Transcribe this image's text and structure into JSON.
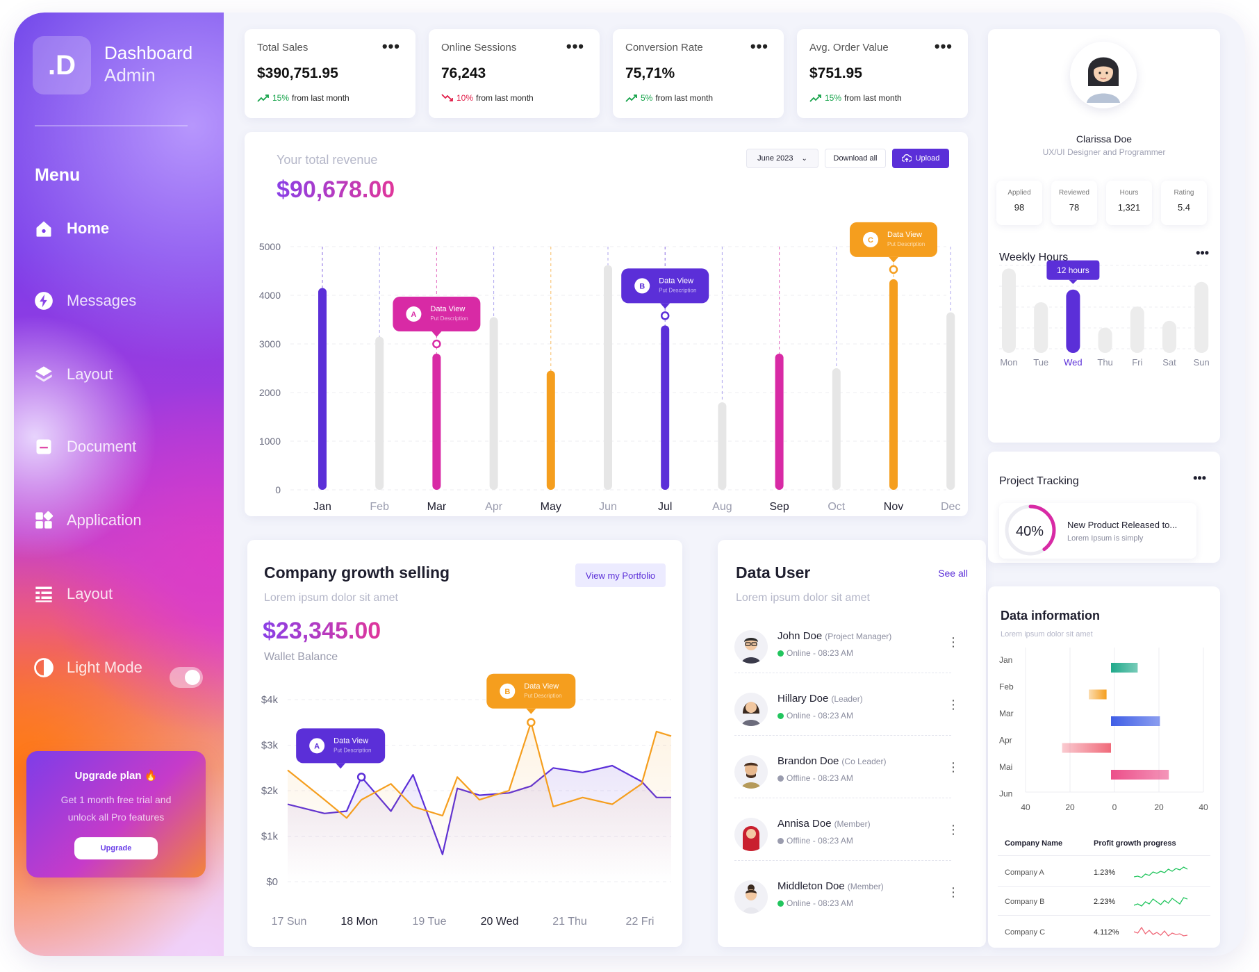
{
  "brand": {
    "logo": ".D",
    "title": "Dashboard",
    "subtitle": "Admin"
  },
  "sidebar": {
    "menu_title": "Menu",
    "items": [
      {
        "label": "Home",
        "icon": "home-icon"
      },
      {
        "label": "Messages",
        "icon": "lightning-icon"
      },
      {
        "label": "Layout",
        "icon": "layers-icon"
      },
      {
        "label": "Document",
        "icon": "document-icon"
      },
      {
        "label": "Application",
        "icon": "apps-grid-icon"
      },
      {
        "label": "Layout",
        "icon": "list-layout-icon"
      },
      {
        "label": "Light Mode",
        "icon": "contrast-icon"
      }
    ],
    "upgrade": {
      "title": "Upgrade plan 🔥",
      "desc": "Get 1 month free trial and unlock all Pro features",
      "button": "Upgrade"
    }
  },
  "stats": [
    {
      "label": "Total Sales",
      "value": "$390,751.95",
      "change": "15%",
      "change_text": "from last month",
      "direction": "up"
    },
    {
      "label": "Online Sessions",
      "value": "76,243",
      "change": "10%",
      "change_text": "from last month",
      "direction": "down"
    },
    {
      "label": "Conversion Rate",
      "value": "75,71%",
      "change": "5%",
      "change_text": "from last month",
      "direction": "up"
    },
    {
      "label": "Avg. Order Value",
      "value": "$751.95",
      "change": "15%",
      "change_text": "from last month",
      "direction": "up"
    }
  ],
  "revenue": {
    "title": "Your total revenue",
    "amount": "$90,678.00",
    "period": "June 2023",
    "download": "Download all",
    "upload": "Upload"
  },
  "growth": {
    "title": "Company growth selling",
    "subtitle": "Lorem ipsum dolor sit amet",
    "button": "View my Portfolio",
    "amount": "$23,345.00",
    "amount_label": "Wallet Balance"
  },
  "data_user": {
    "title": "Data User",
    "see_all": "See all",
    "subtitle": "Lorem ipsum dolor sit amet",
    "users": [
      {
        "name": "John Doe",
        "role": "(Project Manager)",
        "status": "Online - 08:23 AM",
        "online": true
      },
      {
        "name": "Hillary Doe",
        "role": "(Leader)",
        "status": "Online - 08:23 AM",
        "online": true
      },
      {
        "name": "Brandon Doe",
        "role": "(Co Leader)",
        "status": "Offline - 08:23 AM",
        "online": false
      },
      {
        "name": "Annisa Doe",
        "role": "(Member)",
        "status": "Offline - 08:23 AM",
        "online": false
      },
      {
        "name": "Middleton Doe",
        "role": "(Member)",
        "status": "Online - 08:23 AM",
        "online": true
      }
    ]
  },
  "profile": {
    "name": "Clarissa Doe",
    "title": "UX/UI Designer and Programmer",
    "stats": [
      {
        "label": "Applied",
        "value": "98"
      },
      {
        "label": "Reviewed",
        "value": "78"
      },
      {
        "label": "Hours",
        "value": "1,321"
      },
      {
        "label": "Rating",
        "value": "5.4"
      }
    ]
  },
  "weekly": {
    "title": "Weekly Hours",
    "tooltip": "12 hours"
  },
  "project": {
    "title": "Project Tracking",
    "percent": "40%",
    "percent_value": 40,
    "item_title": "New Product Released to...",
    "item_desc": "Lorem Ipsum is simply"
  },
  "data_info": {
    "title": "Data information",
    "subtitle": "Lorem ipsum dolor sit amet",
    "table_headers": [
      "Company Name",
      "Profit growth progress"
    ],
    "rows": [
      {
        "name": "Company A",
        "value": "1.23%",
        "color": "#22c55e"
      },
      {
        "name": "Company B",
        "value": "2.23%",
        "color": "#22c55e"
      },
      {
        "name": "Company C",
        "value": "4.112%",
        "color": "#f06a7a"
      }
    ]
  },
  "chart_data": [
    {
      "type": "bar",
      "title": "Your total revenue",
      "categories": [
        "Jan",
        "Feb",
        "Mar",
        "Apr",
        "May",
        "Jun",
        "Jul",
        "Aug",
        "Sep",
        "Oct",
        "Nov",
        "Dec"
      ],
      "values": [
        4150,
        3150,
        2800,
        3550,
        2450,
        4620,
        3380,
        1800,
        2800,
        2500,
        4330,
        3650
      ],
      "colors": [
        "#5b2fd8",
        "#e6e6e6",
        "#d82aa5",
        "#e6e6e6",
        "#f59e1e",
        "#e6e6e6",
        "#5b2fd8",
        "#e6e6e6",
        "#d82aa5",
        "#e6e6e6",
        "#f59e1e",
        "#e6e6e6"
      ],
      "ylim": [
        0,
        5000
      ],
      "yticks": [
        0,
        1000,
        2000,
        3000,
        4000,
        5000
      ],
      "annotations": [
        {
          "category": "Mar",
          "letter": "A",
          "label": "Data View",
          "sub": "Put Description",
          "color": "#d82aa5"
        },
        {
          "category": "Jul",
          "letter": "B",
          "label": "Data View",
          "sub": "Put Description",
          "color": "#5b2fd8"
        },
        {
          "category": "Nov",
          "letter": "C",
          "label": "Data View",
          "sub": "Put Description",
          "color": "#f59e1e"
        }
      ]
    },
    {
      "type": "line",
      "title": "Company growth selling",
      "x_ticks": [
        "17 Sun",
        "18 Mon",
        "19 Tue",
        "20 Wed",
        "21 Thu",
        "22 Fri"
      ],
      "x": [
        0,
        0.5,
        0.8,
        1,
        1.4,
        1.7,
        2.1,
        2.3,
        2.6,
        3,
        3.3,
        3.6,
        4,
        4.4,
        4.8,
        5,
        5.2
      ],
      "yticks": [
        "$0",
        "$1k",
        "$2k",
        "$3k",
        "$4k"
      ],
      "ylim": [
        0,
        4000
      ],
      "series": [
        {
          "name": "purple",
          "color": "#5b2fd8",
          "values": [
            1700,
            1500,
            1550,
            2300,
            1550,
            2350,
            600,
            2050,
            1900,
            1950,
            2100,
            2500,
            2400,
            2550,
            2200,
            1850,
            1850
          ]
        },
        {
          "name": "orange",
          "color": "#f59e1e",
          "values": [
            2450,
            1800,
            1400,
            1800,
            2150,
            1650,
            1450,
            2300,
            1800,
            2000,
            3500,
            1650,
            1850,
            1700,
            2150,
            3300,
            3200
          ]
        }
      ],
      "annotations": [
        {
          "letter": "A",
          "label": "Data View",
          "sub": "Put Description",
          "color": "#5b2fd8"
        },
        {
          "letter": "B",
          "label": "Data View",
          "sub": "Put Description",
          "color": "#f59e1e"
        }
      ]
    },
    {
      "type": "bar",
      "title": "Weekly Hours",
      "categories": [
        "Mon",
        "Tue",
        "Wed",
        "Thu",
        "Fri",
        "Sat",
        "Sun"
      ],
      "values": [
        10,
        6,
        7.5,
        3,
        5.5,
        3.8,
        8.4
      ],
      "highlight": "Wed",
      "ylim": [
        0,
        12
      ]
    },
    {
      "type": "bar",
      "title": "Data information",
      "orientation": "horizontal",
      "categories": [
        "Jan",
        "Feb",
        "Mar",
        "Apr",
        "Mai",
        "Jun"
      ],
      "ranges": [
        [
          0,
          12
        ],
        [
          -10,
          -2
        ],
        [
          0,
          22
        ],
        [
          -22,
          0
        ],
        [
          0,
          26
        ],
        [
          0,
          0
        ]
      ],
      "colors": [
        "#1fa98a",
        "#f59e1e",
        "#3f5ee6",
        "#f06a7a",
        "#ec4f8a",
        "#cccccc"
      ],
      "x_ticks": [
        "40",
        "20",
        "0",
        "20",
        "40"
      ]
    },
    {
      "type": "pie",
      "title": "Project Tracking",
      "values": [
        40,
        60
      ]
    }
  ]
}
